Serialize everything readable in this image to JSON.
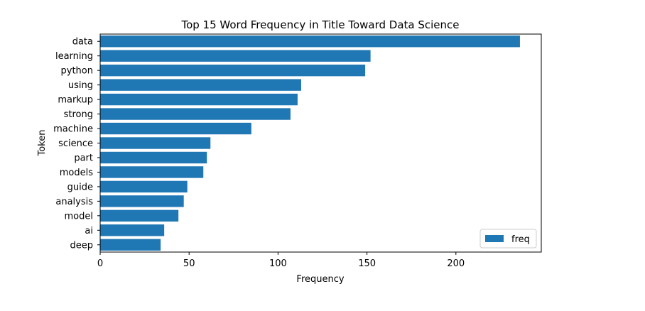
{
  "chart_data": {
    "type": "bar",
    "orientation": "horizontal",
    "title": "Top 15 Word Frequency in Title Toward Data Science",
    "xlabel": "Frequency",
    "ylabel": "Token",
    "xlim": [
      0,
      248
    ],
    "xticks": [
      0,
      50,
      100,
      150,
      200
    ],
    "categories": [
      "data",
      "learning",
      "python",
      "using",
      "markup",
      "strong",
      "machine",
      "science",
      "part",
      "models",
      "guide",
      "analysis",
      "model",
      "ai",
      "deep"
    ],
    "series": [
      {
        "name": "freq",
        "values": [
          236,
          152,
          149,
          113,
          111,
          107,
          85,
          62,
          60,
          58,
          49,
          47,
          44,
          36,
          34
        ],
        "color": "#1f77b4"
      }
    ],
    "legend": {
      "position": "bottom-right"
    },
    "grid": false
  }
}
